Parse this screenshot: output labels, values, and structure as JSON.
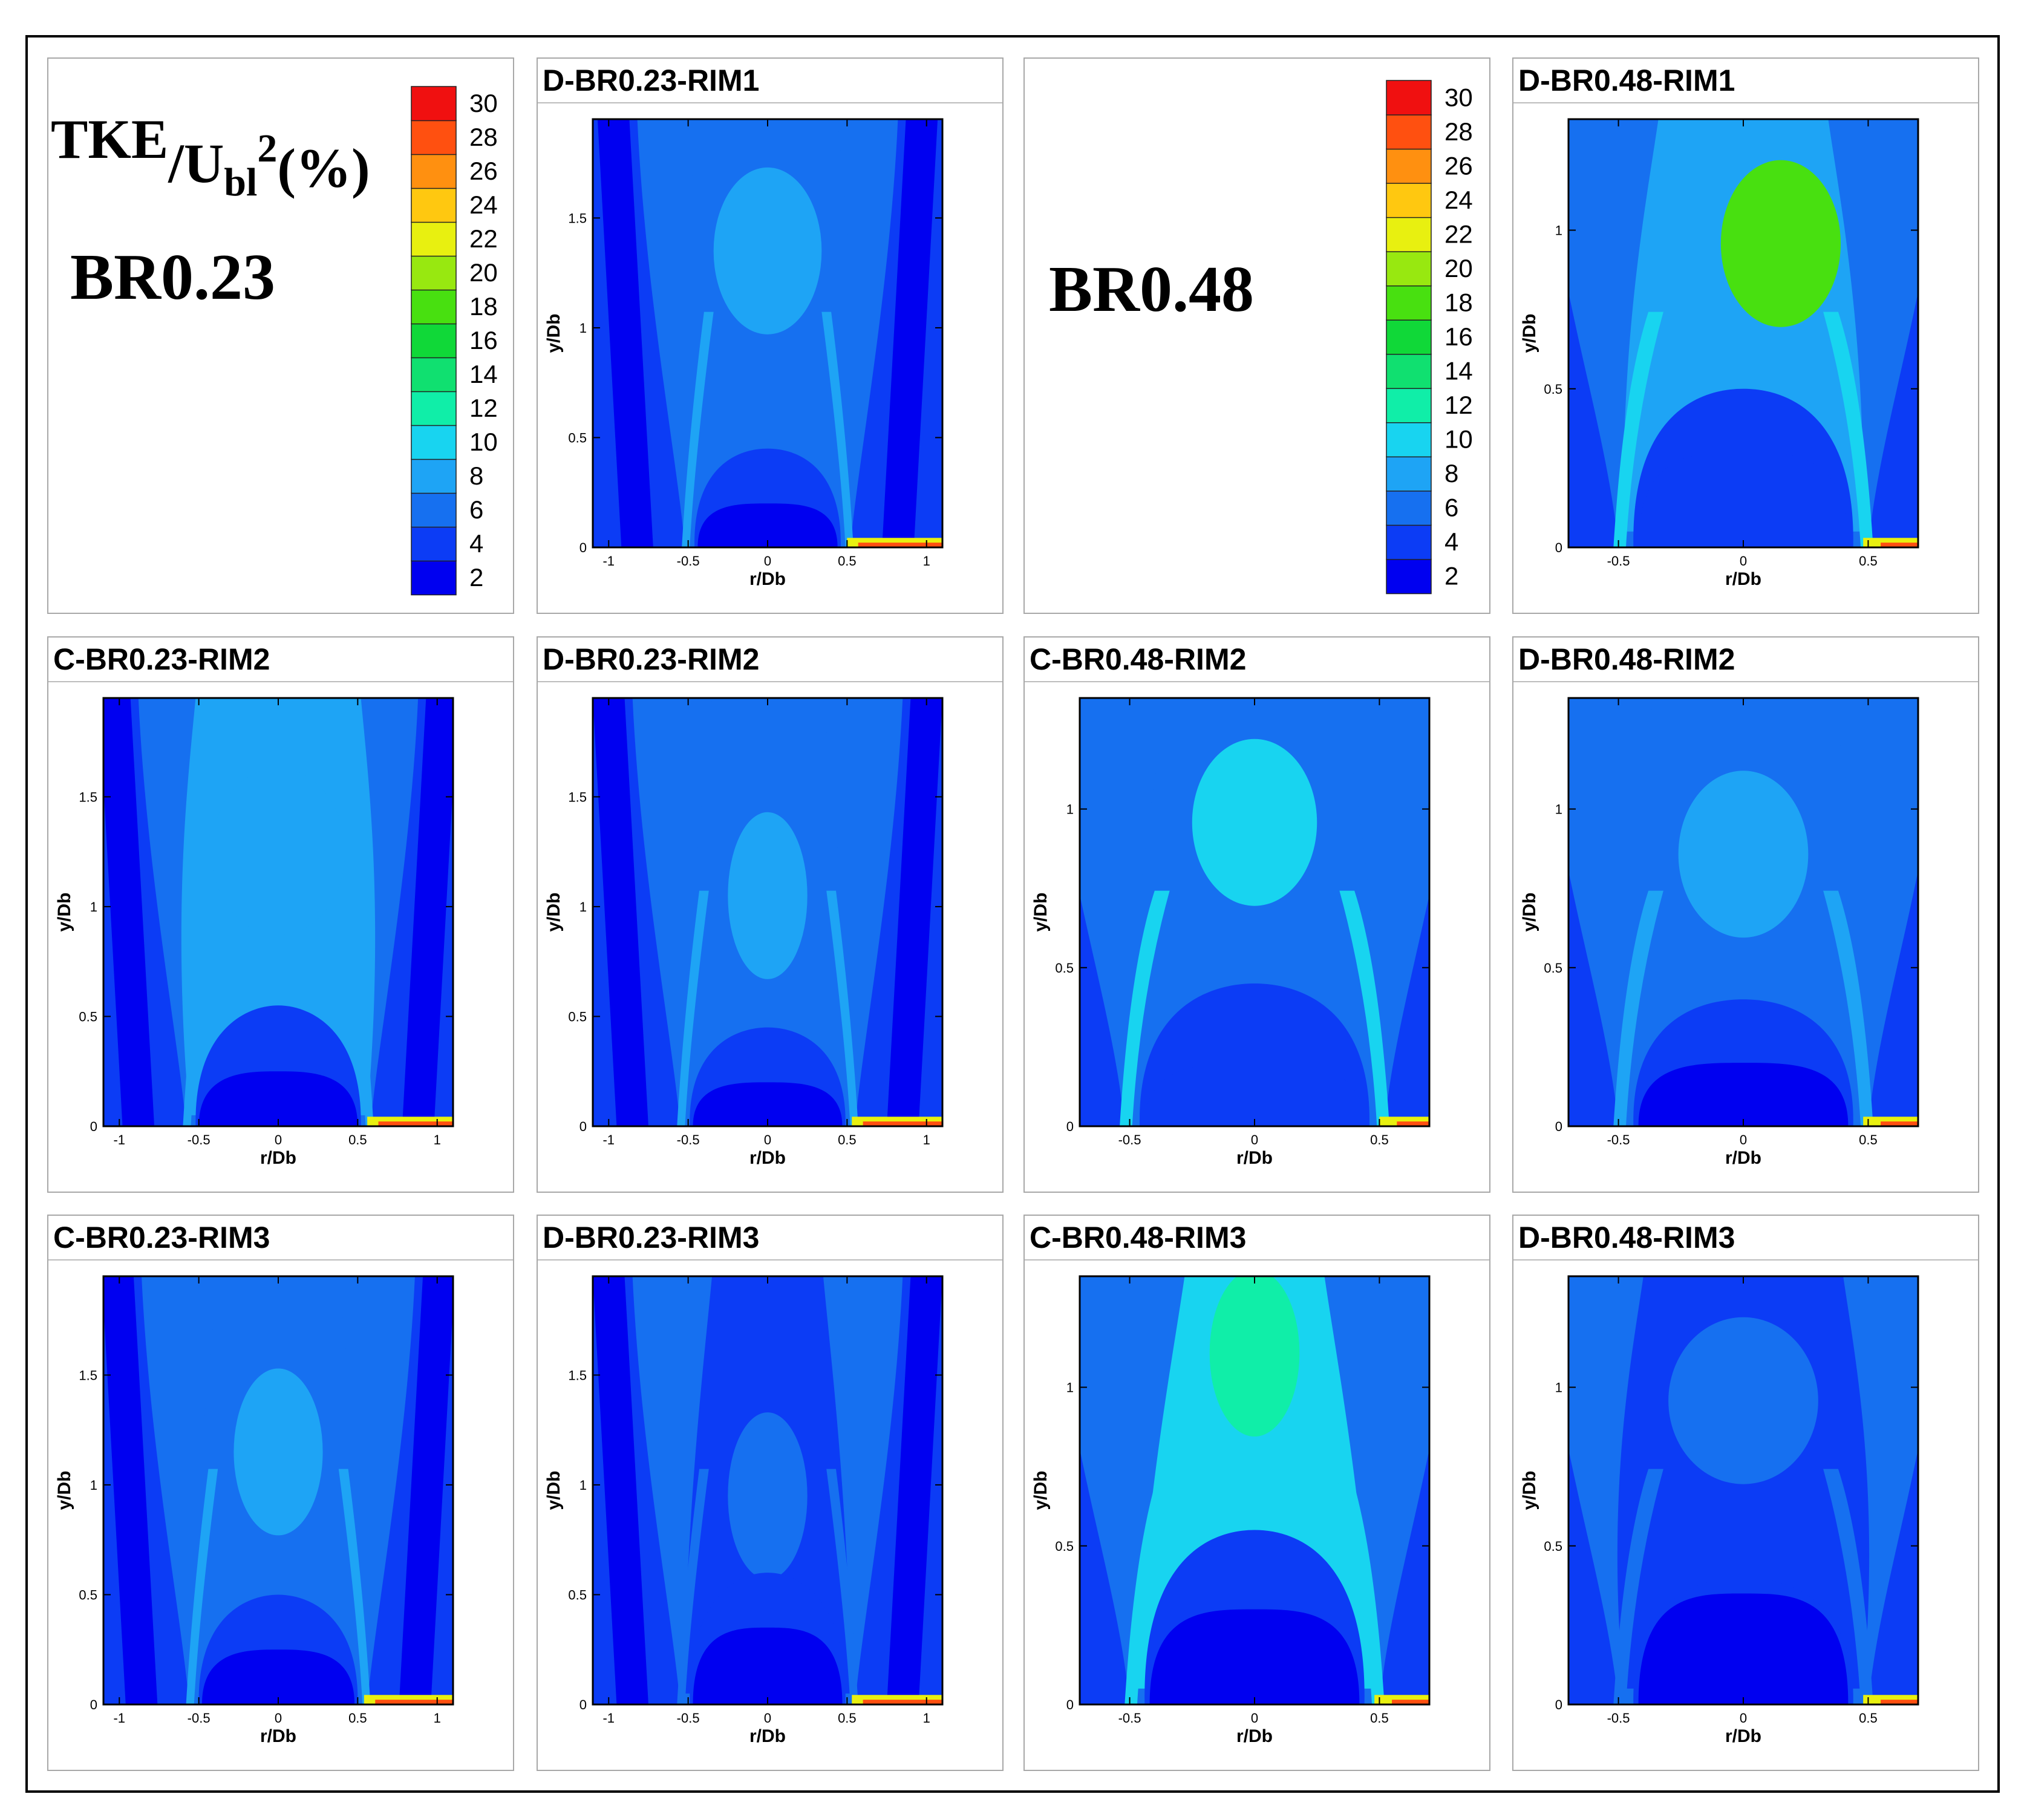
{
  "chart_data": {
    "type": "heatmap",
    "quantity": "TKE/Ubl²(%)",
    "legend": {
      "label_main": "TKE",
      "label_denom": "/U",
      "label_sub": "bl",
      "label_sup": "2",
      "label_tail": "(%)",
      "levels": [
        2,
        4,
        6,
        8,
        10,
        12,
        14,
        16,
        18,
        20,
        22,
        24,
        26,
        28,
        30
      ],
      "level_labels": [
        "2",
        "4",
        "6",
        "8",
        "10",
        "12",
        "14",
        "16",
        "18",
        "20",
        "22",
        "24",
        "26",
        "28",
        "30"
      ],
      "colors": [
        "#0000f0",
        "#0c3cf5",
        "#1670f0",
        "#1ea4f5",
        "#18d4f0",
        "#10eea8",
        "#10e070",
        "#10d838",
        "#48e010",
        "#98e810",
        "#e8f010",
        "#ffc810",
        "#ff9010",
        "#ff5010",
        "#f01010"
      ]
    },
    "group_labels": [
      "BR0.23",
      "BR0.48"
    ],
    "axes": {
      "xlabel": "r/Db",
      "ylabel": "y/Db",
      "br023": {
        "xlim": [
          -1.1,
          1.1
        ],
        "ylim": [
          0,
          1.95
        ],
        "xticks": [
          "-1",
          "-0.5",
          "0",
          "0.5",
          "1"
        ],
        "xtick_vals": [
          -1,
          -0.5,
          0,
          0.5,
          1
        ],
        "yticks": [
          "0",
          "0.5",
          "1",
          "1.5"
        ],
        "ytick_vals": [
          0,
          0.5,
          1,
          1.5
        ]
      },
      "br048": {
        "xlim": [
          -0.7,
          0.7
        ],
        "ylim": [
          0,
          1.35
        ],
        "xticks": [
          "-0.5",
          "0",
          "0.5"
        ],
        "xtick_vals": [
          -0.5,
          0,
          0.5
        ],
        "yticks": [
          "0",
          "0.5",
          "1"
        ],
        "ytick_vals": [
          0,
          0.5,
          1
        ]
      }
    },
    "panels": [
      {
        "title": "D-BR0.23-RIM1",
        "group": "br023",
        "jet_r": 0.52,
        "lobe_level": 8,
        "lobe_top": 1.7,
        "lobe_width": 0.34,
        "core_level": 6,
        "inner_level": 4,
        "inner_top": 0.45,
        "bottom_level": 2,
        "bottom_top": 0.2,
        "wall_level": 2,
        "hot_side": 1
      },
      {
        "title": "D-BR0.48-RIM1",
        "group": "br048",
        "jet_r": 0.5,
        "lobe_level": 18,
        "lobe_top": 1.2,
        "lobe_width": 0.24,
        "core_level": 8,
        "inner_level": 4,
        "inner_top": 0.5,
        "bottom_level": 4,
        "bottom_top": 0.3,
        "wall_level": 4,
        "hot_side": 1
      },
      {
        "title": "C-BR0.23-RIM2",
        "group": "br023",
        "jet_r": 0.58,
        "lobe_level": 8,
        "lobe_top": 1.6,
        "lobe_width": 0.42,
        "core_level": 8,
        "inner_level": 4,
        "inner_top": 0.55,
        "bottom_level": 2,
        "bottom_top": 0.25,
        "wall_level": 2,
        "hot_side": 1
      },
      {
        "title": "D-BR0.23-RIM2",
        "group": "br023",
        "jet_r": 0.55,
        "lobe_level": 8,
        "lobe_top": 1.4,
        "lobe_width": 0.25,
        "core_level": 6,
        "inner_level": 4,
        "inner_top": 0.45,
        "bottom_level": 2,
        "bottom_top": 0.2,
        "wall_level": 2,
        "hot_side": 1
      },
      {
        "title": "C-BR0.48-RIM2",
        "group": "br048",
        "jet_r": 0.52,
        "lobe_level": 10,
        "lobe_top": 1.2,
        "lobe_width": 0.25,
        "core_level": 6,
        "inner_level": 4,
        "inner_top": 0.45,
        "bottom_level": 4,
        "bottom_top": 0.2,
        "wall_level": 4,
        "hot_side": 1
      },
      {
        "title": "D-BR0.48-RIM2",
        "group": "br048",
        "jet_r": 0.5,
        "lobe_level": 8,
        "lobe_top": 1.1,
        "lobe_width": 0.26,
        "core_level": 6,
        "inner_level": 4,
        "inner_top": 0.4,
        "bottom_level": 2,
        "bottom_top": 0.2,
        "wall_level": 4,
        "hot_side": 1
      },
      {
        "title": "C-BR0.23-RIM3",
        "group": "br023",
        "jet_r": 0.56,
        "lobe_level": 8,
        "lobe_top": 1.5,
        "lobe_width": 0.28,
        "core_level": 6,
        "inner_level": 4,
        "inner_top": 0.5,
        "bottom_level": 2,
        "bottom_top": 0.25,
        "wall_level": 2,
        "hot_side": 1
      },
      {
        "title": "D-BR0.23-RIM3",
        "group": "br023",
        "jet_r": 0.55,
        "lobe_level": 6,
        "lobe_top": 1.3,
        "lobe_width": 0.25,
        "core_level": 4,
        "inner_level": 4,
        "inner_top": 0.6,
        "bottom_level": 2,
        "bottom_top": 0.35,
        "wall_level": 2,
        "hot_side": 1
      },
      {
        "title": "C-BR0.48-RIM3",
        "group": "br048",
        "jet_r": 0.5,
        "lobe_level": 12,
        "lobe_top": 1.35,
        "lobe_width": 0.18,
        "core_level": 10,
        "inner_level": 4,
        "inner_top": 0.55,
        "bottom_level": 2,
        "bottom_top": 0.3,
        "wall_level": 4,
        "hot_side": 1
      },
      {
        "title": "D-BR0.48-RIM3",
        "group": "br048",
        "jet_r": 0.5,
        "lobe_level": 6,
        "lobe_top": 1.2,
        "lobe_width": 0.3,
        "core_level": 4,
        "inner_level": 4,
        "inner_top": 0.4,
        "bottom_level": 2,
        "bottom_top": 0.35,
        "wall_level": 4,
        "hot_side": 1
      }
    ]
  }
}
